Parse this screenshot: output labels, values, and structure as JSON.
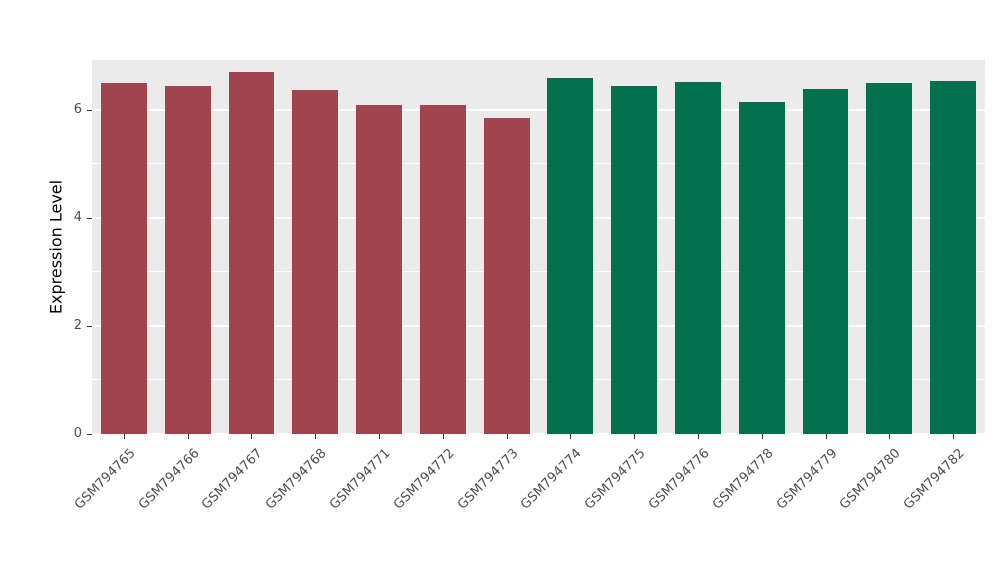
{
  "chart_data": {
    "type": "bar",
    "title": "",
    "xlabel": "",
    "ylabel": "Expression Level",
    "ylim": [
      0,
      6.93
    ],
    "yticks": [
      0,
      2,
      4,
      6
    ],
    "yticks_minor": [
      1,
      3,
      5
    ],
    "grid": "on",
    "legend_position": "none",
    "categories": [
      "GSM794765",
      "GSM794766",
      "GSM794767",
      "GSM794768",
      "GSM794771",
      "GSM794772",
      "GSM794773",
      "GSM794774",
      "GSM794775",
      "GSM794776",
      "GSM794778",
      "GSM794779",
      "GSM794780",
      "GSM794782"
    ],
    "values": [
      6.5,
      6.45,
      6.7,
      6.38,
      6.1,
      6.1,
      5.85,
      6.6,
      6.45,
      6.52,
      6.15,
      6.4,
      6.5,
      6.55
    ],
    "bar_colors": [
      "#A1444D",
      "#A1444D",
      "#A1444D",
      "#A1444D",
      "#A1444D",
      "#A1444D",
      "#A1444D",
      "#03714D",
      "#03714D",
      "#03714D",
      "#03714D",
      "#03714D",
      "#03714D",
      "#03714D"
    ],
    "group_colors": {
      "left_group": "#A1444D",
      "right_group": "#03714D"
    },
    "panel_background": "#EBEBEB",
    "grid_color": "#FFFFFF",
    "axis_text_color": "#4D4D4D"
  }
}
